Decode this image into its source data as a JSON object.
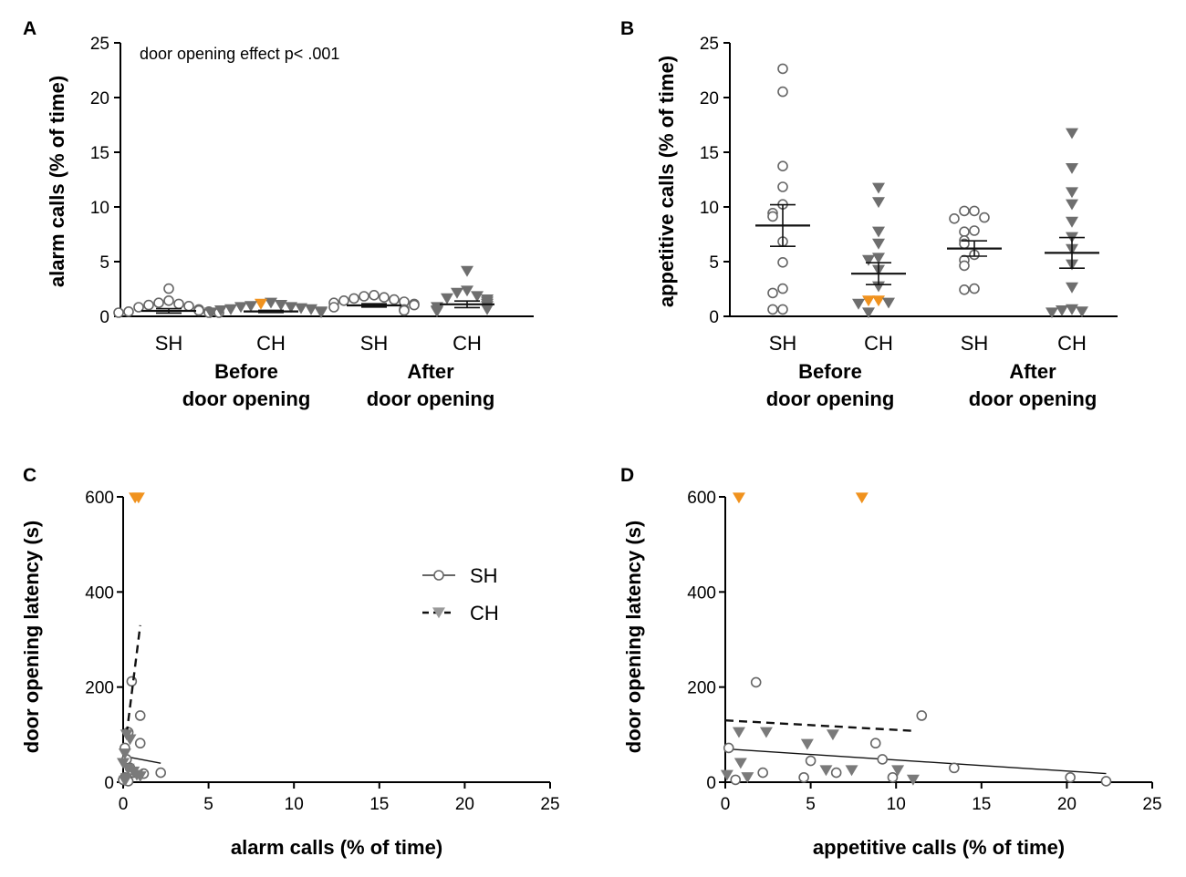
{
  "figure": {
    "panels": [
      "A",
      "B",
      "C",
      "D"
    ],
    "colors": {
      "sh_marker": "#ffffff",
      "sh_stroke": "#666666",
      "ch_marker": "#6e6e6e",
      "highlight": "#f0921e",
      "axis": "#000000"
    },
    "legend": {
      "sh": "SH",
      "ch": "CH"
    }
  },
  "chart_data": [
    {
      "panel": "A",
      "type": "scatter",
      "ylabel": "alarm calls (% of time)",
      "ylim": [
        0,
        25
      ],
      "yticks": [
        0,
        5,
        10,
        15,
        20,
        25
      ],
      "annotation": "door opening effect p< .001",
      "categories": [
        "SH",
        "CH",
        "SH",
        "CH"
      ],
      "groups": [
        {
          "label_line1": "Before",
          "label_line2": "door opening"
        },
        {
          "label_line1": "After",
          "label_line2": "door opening"
        }
      ],
      "series": [
        {
          "name": "SH before",
          "marker": "circle",
          "mean": 0.5,
          "sem": 0.2,
          "values": [
            2.2,
            1.1,
            0.9,
            0.8,
            0.7,
            0.6,
            0.5,
            0.3,
            0.2,
            0.1,
            0.1,
            0.0,
            0.0,
            0.0
          ]
        },
        {
          "name": "CH before",
          "marker": "triangle",
          "mean": 0.45,
          "sem": 0.1,
          "values": [
            0.9,
            0.8,
            0.7,
            0.6,
            0.5,
            0.5,
            0.4,
            0.3,
            0.3,
            0.2,
            0.1,
            0.0,
            0.0
          ],
          "highlight": [
            0.8
          ]
        },
        {
          "name": "SH after",
          "marker": "circle",
          "mean": 1.0,
          "sem": 0.15,
          "values": [
            1.6,
            1.5,
            1.4,
            1.3,
            1.2,
            1.1,
            1.0,
            0.9,
            0.8,
            0.7,
            0.5,
            0.3,
            0.2
          ]
        },
        {
          "name": "CH after",
          "marker": "triangle",
          "mean": 1.1,
          "sem": 0.3,
          "values": [
            3.8,
            2.0,
            1.8,
            1.5,
            1.3,
            1.2,
            1.0,
            0.8,
            0.6,
            0.5,
            0.3,
            0.2,
            0.1
          ]
        }
      ]
    },
    {
      "panel": "B",
      "type": "scatter",
      "ylabel": "appetitive calls (% of time)",
      "ylim": [
        0,
        25
      ],
      "yticks": [
        0,
        5,
        10,
        15,
        20,
        25
      ],
      "categories": [
        "SH",
        "CH",
        "SH",
        "CH"
      ],
      "groups": [
        {
          "label_line1": "Before",
          "label_line2": "door opening"
        },
        {
          "label_line1": "After",
          "label_line2": "door opening"
        }
      ],
      "series": [
        {
          "name": "SH before",
          "marker": "circle",
          "mean": 8.3,
          "sem": 1.9,
          "values": [
            22.3,
            20.2,
            13.4,
            11.5,
            9.9,
            9.1,
            8.8,
            6.5,
            4.6,
            2.2,
            1.8,
            0.3,
            0.3
          ]
        },
        {
          "name": "CH before",
          "marker": "triangle",
          "mean": 3.9,
          "sem": 1.0,
          "values": [
            11.4,
            10.1,
            7.4,
            6.3,
            5.0,
            4.8,
            3.9,
            2.4,
            1.1,
            1.1,
            0.9,
            0.8,
            0.0
          ],
          "highlight": [
            1.1,
            1.1
          ]
        },
        {
          "name": "SH after",
          "marker": "circle",
          "mean": 6.2,
          "sem": 0.7,
          "values": [
            9.3,
            9.3,
            8.7,
            8.6,
            7.5,
            7.4,
            6.6,
            6.3,
            5.3,
            4.8,
            4.3,
            2.2,
            2.1
          ]
        },
        {
          "name": "CH after",
          "marker": "triangle",
          "mean": 5.8,
          "sem": 1.4,
          "values": [
            16.4,
            13.2,
            11.0,
            9.9,
            8.3,
            6.9,
            5.8,
            4.4,
            2.3,
            0.3,
            0.2,
            0.1,
            0.0
          ]
        }
      ]
    },
    {
      "panel": "C",
      "type": "scatter",
      "xlabel": "alarm calls (% of time)",
      "ylabel": "door opening latency (s)",
      "xlim": [
        0,
        25
      ],
      "ylim": [
        0,
        600
      ],
      "xticks": [
        0,
        5,
        10,
        15,
        20,
        25
      ],
      "yticks": [
        0,
        200,
        400,
        600
      ],
      "legend_position": "right",
      "series": [
        {
          "name": "SH",
          "marker": "circle",
          "points": [
            [
              0.5,
              212
            ],
            [
              1.0,
              140
            ],
            [
              1.0,
              82
            ],
            [
              0.3,
              105
            ],
            [
              0.1,
              72
            ],
            [
              0.2,
              48
            ],
            [
              0.4,
              30
            ],
            [
              0.6,
              20
            ],
            [
              1.2,
              18
            ],
            [
              2.2,
              20
            ],
            [
              0.1,
              10
            ],
            [
              0.0,
              5
            ],
            [
              0.3,
              2
            ]
          ],
          "fit": {
            "style": "solid",
            "from": [
              0.0,
              55
            ],
            "to": [
              2.2,
              40
            ]
          }
        },
        {
          "name": "CH",
          "marker": "triangle",
          "points": [
            [
              0.2,
              100
            ],
            [
              0.4,
              90
            ],
            [
              0.1,
              60
            ],
            [
              0.0,
              40
            ],
            [
              0.3,
              28
            ],
            [
              0.6,
              22
            ],
            [
              0.8,
              15
            ],
            [
              1.0,
              12
            ],
            [
              0.2,
              8
            ],
            [
              0.1,
              3
            ]
          ],
          "highlight_points": [
            [
              0.7,
              600
            ],
            [
              0.9,
              600
            ]
          ],
          "fit": {
            "style": "dashed",
            "from": [
              0.2,
              100
            ],
            "to": [
              1.0,
              330
            ]
          }
        }
      ]
    },
    {
      "panel": "D",
      "type": "scatter",
      "xlabel": "appetitive calls (% of time)",
      "ylabel": "door opening latency (s)",
      "xlim": [
        0,
        25
      ],
      "ylim": [
        0,
        600
      ],
      "xticks": [
        0,
        5,
        10,
        15,
        20,
        25
      ],
      "yticks": [
        0,
        200,
        400,
        600
      ],
      "series": [
        {
          "name": "SH",
          "marker": "circle",
          "points": [
            [
              1.8,
              210
            ],
            [
              11.5,
              140
            ],
            [
              8.8,
              82
            ],
            [
              0.2,
              72
            ],
            [
              9.2,
              48
            ],
            [
              5.0,
              45
            ],
            [
              13.4,
              30
            ],
            [
              2.2,
              20
            ],
            [
              6.5,
              20
            ],
            [
              9.8,
              10
            ],
            [
              4.6,
              10
            ],
            [
              0.6,
              5
            ],
            [
              20.2,
              10
            ],
            [
              22.3,
              2
            ]
          ],
          "fit": {
            "style": "solid",
            "from": [
              0.0,
              70
            ],
            "to": [
              22.3,
              18
            ]
          }
        },
        {
          "name": "CH",
          "marker": "triangle",
          "points": [
            [
              0.8,
              105
            ],
            [
              2.4,
              105
            ],
            [
              4.8,
              80
            ],
            [
              6.3,
              100
            ],
            [
              0.9,
              40
            ],
            [
              1.3,
              10
            ],
            [
              5.9,
              25
            ],
            [
              7.4,
              25
            ],
            [
              10.1,
              25
            ],
            [
              11.0,
              5
            ],
            [
              0.1,
              15
            ]
          ],
          "highlight_points": [
            [
              0.8,
              600
            ],
            [
              8.0,
              600
            ]
          ],
          "fit": {
            "style": "dashed",
            "from": [
              0.0,
              130
            ],
            "to": [
              11.0,
              108
            ]
          }
        }
      ]
    }
  ]
}
